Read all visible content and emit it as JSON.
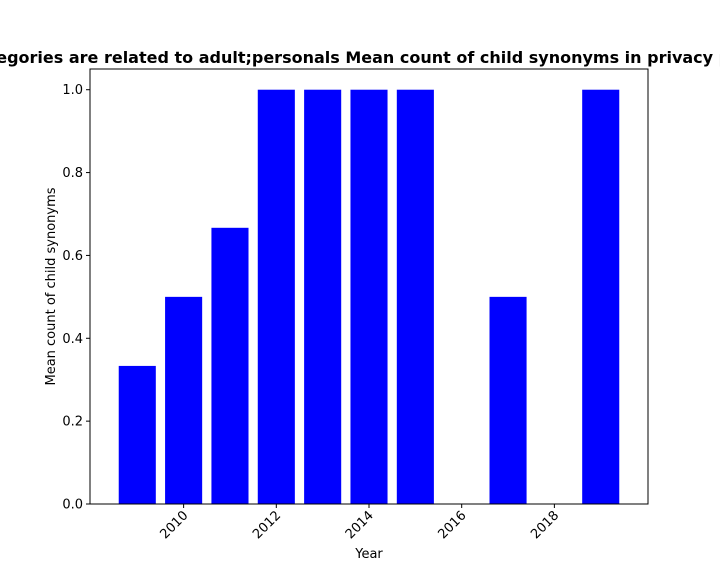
{
  "chart_data": {
    "type": "bar",
    "title": "Categories are related to adult;personals Mean count of child synonyms in privacy policy",
    "xlabel": "Year",
    "ylabel": "Mean count of child synonyms",
    "x": [
      2009,
      2010,
      2011,
      2012,
      2013,
      2014,
      2015,
      2017,
      2019
    ],
    "values": [
      0.3333,
      0.5,
      0.6667,
      1.0,
      1.0,
      1.0,
      1.0,
      0.5,
      1.0
    ],
    "xlim": [
      2007.98,
      2020.02
    ],
    "ylim": [
      0,
      1.05
    ],
    "xticks": [
      2010,
      2012,
      2014,
      2016,
      2018
    ],
    "xtick_labels": [
      "2010",
      "2012",
      "2014",
      "2016",
      "2018"
    ],
    "yticks": [
      0.0,
      0.2,
      0.4,
      0.6,
      0.8,
      1.0
    ],
    "ytick_labels": [
      "0.0",
      "0.2",
      "0.4",
      "0.6",
      "0.8",
      "1.0"
    ],
    "bar_color": "#0000ff",
    "grid": false,
    "legend": "none"
  }
}
